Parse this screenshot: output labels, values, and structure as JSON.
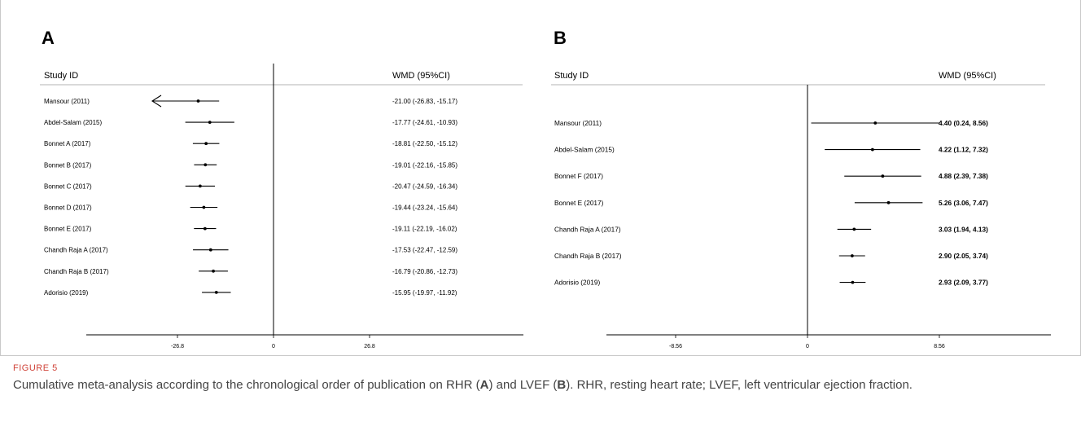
{
  "figure": {
    "label": "FIGURE 5",
    "caption_parts": [
      {
        "text": "Cumulative meta-analysis according to the chronological order of publication on RHR (",
        "bold": false
      },
      {
        "text": "A",
        "bold": true
      },
      {
        "text": ") and LVEF (",
        "bold": false
      },
      {
        "text": "B",
        "bold": true
      },
      {
        "text": "). RHR, resting heart rate; LVEF, left ventricular ejection fraction.",
        "bold": false
      }
    ]
  },
  "chart_data": [
    {
      "type": "forest",
      "panel": "A",
      "col_headers": {
        "study": "Study ID",
        "effect": "WMD (95%CI)"
      },
      "xlim": [
        -53.6,
        53.6
      ],
      "ticks": [
        -26.8,
        0,
        26.8
      ],
      "tick_labels": [
        "-26.8",
        "0",
        "26.8"
      ],
      "reference_line": 0,
      "studies": [
        {
          "label": "Mansour (2011)",
          "est": -21.0,
          "lo": -26.83,
          "hi": -15.17,
          "text": "-21.00 (-26.83, -15.17)",
          "arrow_left": true
        },
        {
          "label": "Abdel-Salam (2015)",
          "est": -17.77,
          "lo": -24.61,
          "hi": -10.93,
          "text": "-17.77 (-24.61, -10.93)"
        },
        {
          "label": "Bonnet A (2017)",
          "est": -18.81,
          "lo": -22.5,
          "hi": -15.12,
          "text": "-18.81 (-22.50, -15.12)"
        },
        {
          "label": "Bonnet B (2017)",
          "est": -19.01,
          "lo": -22.16,
          "hi": -15.85,
          "text": "-19.01 (-22.16, -15.85)"
        },
        {
          "label": "Bonnet C (2017)",
          "est": -20.47,
          "lo": -24.59,
          "hi": -16.34,
          "text": "-20.47 (-24.59, -16.34)"
        },
        {
          "label": "Bonnet D (2017)",
          "est": -19.44,
          "lo": -23.24,
          "hi": -15.64,
          "text": "-19.44 (-23.24, -15.64)"
        },
        {
          "label": "Bonnet E (2017)",
          "est": -19.11,
          "lo": -22.19,
          "hi": -16.02,
          "text": "-19.11 (-22.19, -16.02)"
        },
        {
          "label": "Chandh Raja A (2017)",
          "est": -17.53,
          "lo": -22.47,
          "hi": -12.59,
          "text": "-17.53 (-22.47, -12.59)"
        },
        {
          "label": "Chandh Raja B (2017)",
          "est": -16.79,
          "lo": -20.86,
          "hi": -12.73,
          "text": "-16.79 (-20.86, -12.73)"
        },
        {
          "label": "Adorisio (2019)",
          "est": -15.95,
          "lo": -19.97,
          "hi": -11.92,
          "text": "-15.95 (-19.97, -11.92)"
        }
      ]
    },
    {
      "type": "forest",
      "panel": "B",
      "col_headers": {
        "study": "Study ID",
        "effect": "WMD (95%CI)"
      },
      "xlim": [
        -17.12,
        17.12
      ],
      "ticks": [
        -8.56,
        0,
        8.56
      ],
      "tick_labels": [
        "-8.56",
        "0",
        "8.56"
      ],
      "reference_line": 0,
      "studies": [
        {
          "label": "Mansour (2011)",
          "est": 4.4,
          "lo": 0.24,
          "hi": 8.56,
          "text": "4.40 (0.24, 8.56)"
        },
        {
          "label": "Abdel-Salam (2015)",
          "est": 4.22,
          "lo": 1.12,
          "hi": 7.32,
          "text": "4.22 (1.12, 7.32)"
        },
        {
          "label": "Bonnet F (2017)",
          "est": 4.88,
          "lo": 2.39,
          "hi": 7.38,
          "text": "4.88 (2.39, 7.38)"
        },
        {
          "label": "Bonnet E (2017)",
          "est": 5.26,
          "lo": 3.06,
          "hi": 7.47,
          "text": "5.26 (3.06, 7.47)"
        },
        {
          "label": "Chandh Raja A (2017)",
          "est": 3.03,
          "lo": 1.94,
          "hi": 4.13,
          "text": "3.03 (1.94, 4.13)"
        },
        {
          "label": "Chandh Raja B (2017)",
          "est": 2.9,
          "lo": 2.05,
          "hi": 3.74,
          "text": "2.90 (2.05, 3.74)"
        },
        {
          "label": "Adorisio (2019)",
          "est": 2.93,
          "lo": 2.09,
          "hi": 3.77,
          "text": "2.93 (2.09, 3.77)"
        }
      ]
    }
  ]
}
